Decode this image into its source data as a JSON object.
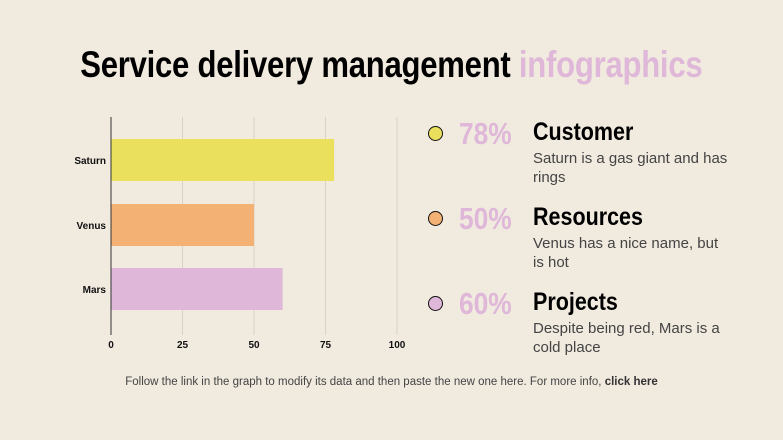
{
  "title": {
    "main": "Service delivery management",
    "accent": "infographics"
  },
  "colors": {
    "background": "#f1eadf",
    "accent": "#dfb7d8",
    "saturn": "#ebe05e",
    "venus": "#f3b174",
    "mars": "#dfb7d8"
  },
  "chart_data": {
    "type": "bar",
    "orientation": "horizontal",
    "categories": [
      "Saturn",
      "Venus",
      "Mars"
    ],
    "values": [
      78,
      50,
      60
    ],
    "colors": [
      "#ebe05e",
      "#f3b174",
      "#dfb7d8"
    ],
    "xlim": [
      0,
      100
    ],
    "xticks": [
      0,
      25,
      50,
      75,
      100
    ],
    "grid": "vertical"
  },
  "items": [
    {
      "percent": "78%",
      "heading": "Customer",
      "description": "Saturn is a gas giant and has rings",
      "color": "#ebe05e"
    },
    {
      "percent": "50%",
      "heading": "Resources",
      "description": "Venus has a nice name, but is hot",
      "color": "#f3b174"
    },
    {
      "percent": "60%",
      "heading": "Projects",
      "description": "Despite being red, Mars is a cold place",
      "color": "#dfb7d8"
    }
  ],
  "footer": {
    "text": "Follow the link in the graph to modify its data and then paste the new one here. For more info, ",
    "link": "click here"
  }
}
